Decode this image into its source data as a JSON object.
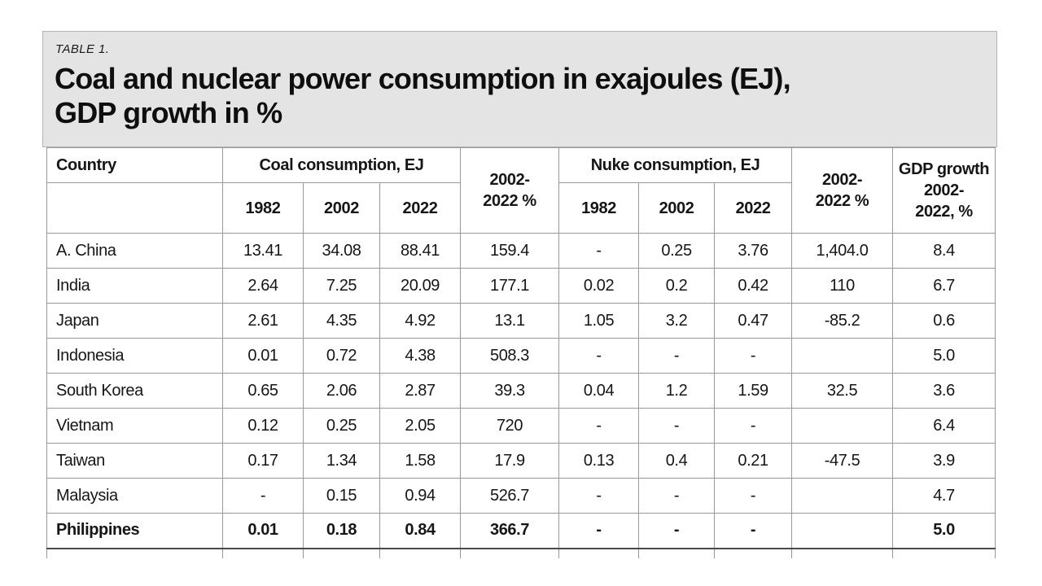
{
  "title_block": {
    "label": "TABLE 1.",
    "title_line1": "Coal and nuclear power consumption in exajoules (EJ),",
    "title_line2": "GDP growth in %"
  },
  "table": {
    "header": {
      "country": "Country",
      "coal_group": "Coal consumption, EJ",
      "nuke_group": "Nuke consumption, EJ",
      "years": [
        "1982",
        "2002",
        "2022"
      ],
      "coal_pct": {
        "line1": "2002-",
        "line2": "2022 %"
      },
      "nuke_pct": {
        "line1": "2002-",
        "line2": "2022 %"
      },
      "gdp": {
        "line1": "GDP growth",
        "line2": "2002-",
        "line3": "2022, %"
      }
    },
    "rows": [
      {
        "country": "A. China",
        "values": [
          "13.41",
          "34.08",
          "88.41",
          "159.4",
          "-",
          "0.25",
          "3.76",
          "1,404.0",
          "8.4"
        ],
        "bold": false
      },
      {
        "country": "India",
        "values": [
          "2.64",
          "7.25",
          "20.09",
          "177.1",
          "0.02",
          "0.2",
          "0.42",
          "110",
          "6.7"
        ],
        "bold": false
      },
      {
        "country": "Japan",
        "values": [
          "2.61",
          "4.35",
          "4.92",
          "13.1",
          "1.05",
          "3.2",
          "0.47",
          "-85.2",
          "0.6"
        ],
        "bold": false
      },
      {
        "country": "Indonesia",
        "values": [
          "0.01",
          "0.72",
          "4.38",
          "508.3",
          "-",
          "-",
          "-",
          "",
          "5.0"
        ],
        "bold": false
      },
      {
        "country": "South Korea",
        "values": [
          "0.65",
          "2.06",
          "2.87",
          "39.3",
          "0.04",
          "1.2",
          "1.59",
          "32.5",
          "3.6"
        ],
        "bold": false
      },
      {
        "country": "Vietnam",
        "values": [
          "0.12",
          "0.25",
          "2.05",
          "720",
          "-",
          "-",
          "-",
          "",
          "6.4"
        ],
        "bold": false
      },
      {
        "country": "Taiwan",
        "values": [
          "0.17",
          "1.34",
          "1.58",
          "17.9",
          "0.13",
          "0.4",
          "0.21",
          "-47.5",
          "3.9"
        ],
        "bold": false
      },
      {
        "country": "Malaysia",
        "values": [
          "-",
          "0.15",
          "0.94",
          "526.7",
          "-",
          "-",
          "-",
          "",
          "4.7"
        ],
        "bold": false
      },
      {
        "country": "Philippines",
        "values": [
          "0.01",
          "0.18",
          "0.84",
          "366.7",
          "-",
          "-",
          "-",
          "",
          "5.0"
        ],
        "bold": true
      }
    ]
  }
}
